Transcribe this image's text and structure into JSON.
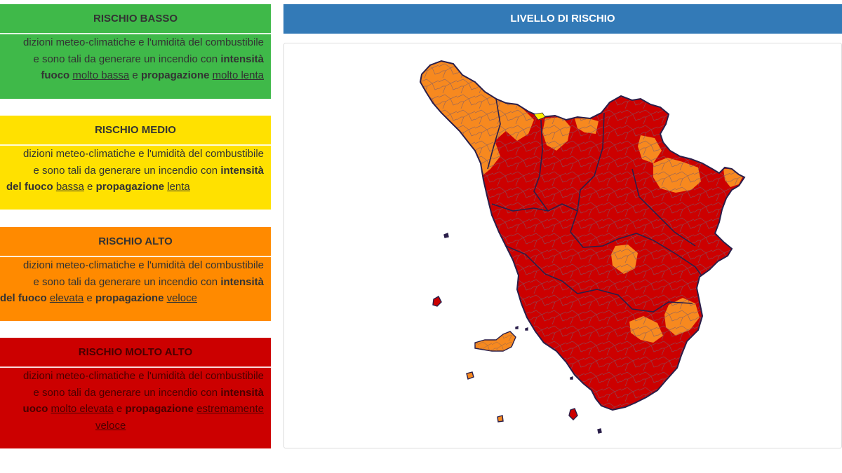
{
  "legend": [
    {
      "id": "low",
      "title": "RISCHIO BASSO",
      "color": "#3fb949",
      "lines": [
        [
          "dizioni meteo-climatiche e l'umidità del combustibile"
        ],
        [
          "e sono tali da generare un incendio con ",
          "intensità"
        ],
        [
          "fuoco ",
          "molto bassa",
          " e ",
          "propagazione",
          " ",
          "molto lenta"
        ]
      ]
    },
    {
      "id": "med",
      "title": "RISCHIO MEDIO",
      "color": "#ffe100",
      "lines": [
        [
          "dizioni meteo-climatiche e l'umidità del combustibile"
        ],
        [
          "e sono tali da generare un incendio con ",
          "intensità"
        ],
        [
          "del fuoco",
          " ",
          "bassa",
          " e ",
          "propagazione",
          " ",
          "lenta"
        ]
      ]
    },
    {
      "id": "high",
      "title": "RISCHIO ALTO",
      "color": "#ff8a00",
      "lines": [
        [
          "dizioni meteo-climatiche e l'umidità del combustibile"
        ],
        [
          "e sono tali da generare un incendio con ",
          "intensità"
        ],
        [
          "del fuoco",
          " ",
          "elevata",
          " e ",
          "propagazione",
          " ",
          "veloce"
        ]
      ]
    },
    {
      "id": "vhigh",
      "title": "RISCHIO MOLTO ALTO",
      "color": "#cc0000",
      "lines": [
        [
          "dizioni meteo-climatiche e l'umidità del combustibile"
        ],
        [
          "e sono tali da generare un incendio con ",
          "intensità"
        ],
        [
          "uoco ",
          "molto elevata",
          " e ",
          "propagazione",
          " ",
          "estremamente"
        ],
        [
          "veloce"
        ]
      ]
    }
  ],
  "map": {
    "title": "LIVELLO DI RISCHIO",
    "colors": {
      "very_high": "#cc0000",
      "high": "#f7891f",
      "medium": "#ffee00",
      "border": "#2a1f4a",
      "municipal_line": "#7a6a8a"
    }
  }
}
